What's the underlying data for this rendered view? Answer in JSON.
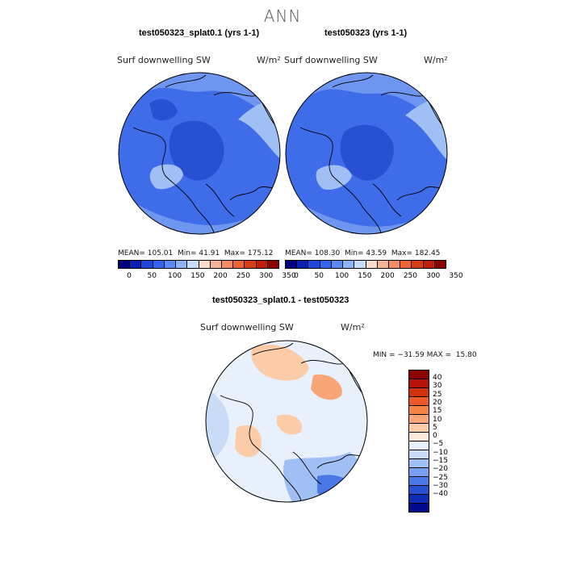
{
  "title": "ANN",
  "colors": {
    "seq": [
      "#000080",
      "#0a1fb4",
      "#1e46dc",
      "#3264f0",
      "#5a8cf5",
      "#8cb4fa",
      "#c8dcfa",
      "#fadcc8",
      "#f5b496",
      "#f58c64",
      "#eb6432",
      "#d73c14",
      "#be1e0a",
      "#8c0000"
    ],
    "diff_pos": [
      "#8c0000",
      "#b4140a",
      "#d2320f",
      "#eb5a28",
      "#f58246",
      "#f8a578",
      "#fccca8",
      "#fde8d8"
    ],
    "diff_neg": [
      "#e8f0fb",
      "#c8dcf8",
      "#a0c0f5",
      "#78a0f0",
      "#4a78e6",
      "#2850d2",
      "#0f2db4",
      "#000a8c"
    ],
    "map_dark": "#2850d2",
    "map_mid": "#3f6ce8",
    "map_light": "#6e96f0",
    "map_pale": "#a0c0f5"
  },
  "panels": [
    {
      "title": "test050323_splat0.1 (yrs 1-1)",
      "variable": "Surf downwelling SW",
      "units": "W/m²",
      "mean_label": "MEAN=",
      "mean": "105.01",
      "min_label": "Min=",
      "min": "41.91",
      "max_label": "Max=",
      "max": "175.12",
      "ticks": [
        "0",
        "50",
        "100",
        "150",
        "200",
        "250",
        "300",
        "350"
      ]
    },
    {
      "title": "test050323 (yrs 1-1)",
      "variable": "Surf downwelling SW",
      "units": "W/m²",
      "mean_label": "MEAN=",
      "mean": "108.30",
      "min_label": "Min=",
      "min": "43.59",
      "max_label": "Max=",
      "max": "182.45",
      "ticks": [
        "0",
        "50",
        "100",
        "150",
        "200",
        "250",
        "300",
        "350"
      ]
    }
  ],
  "diff": {
    "title": "test050323_splat0.1 - test050323",
    "variable": "Surf downwelling SW",
    "units": "W/m²",
    "minmax": "MIN = −31.59 MAX =  15.80",
    "ticks": [
      "40",
      "30",
      "25",
      "20",
      "15",
      "10",
      "5",
      "0",
      "−5",
      "−10",
      "−15",
      "−20",
      "−25",
      "−30",
      "−40"
    ]
  }
}
